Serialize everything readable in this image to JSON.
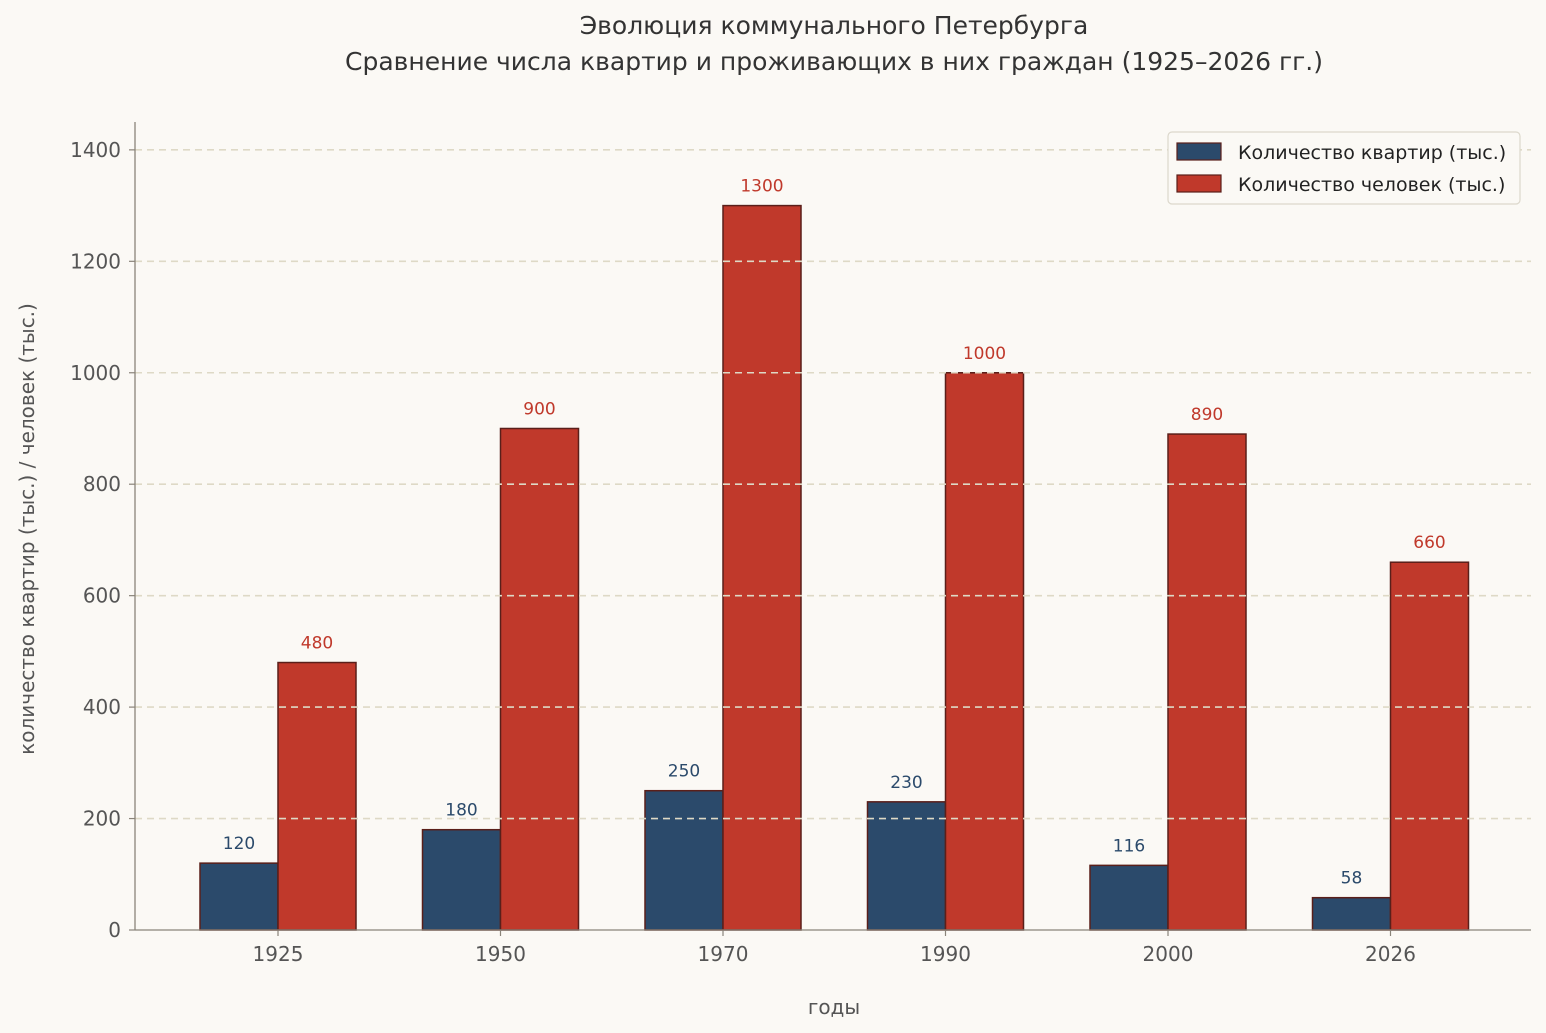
{
  "chart_data": {
    "type": "bar",
    "title": "Эволюция коммунального Петербурга",
    "subtitle": "Сравнение числа квартир и проживающих в них граждан (1925–2026 гг.)",
    "xlabel": "годы",
    "ylabel": "количество квартир (тыс.) / человек (тыс.)",
    "categories": [
      "1925",
      "1950",
      "1970",
      "1990",
      "2000",
      "2026"
    ],
    "series": [
      {
        "name": "Количество квартир (тыс.)",
        "values": [
          120,
          180,
          250,
          230,
          116,
          58
        ],
        "color": "#2b4a6b",
        "label_color": "#2b4a6b"
      },
      {
        "name": "Количество человек (тыс.)",
        "values": [
          480,
          900,
          1300,
          1000,
          890,
          660
        ],
        "color": "#c0392b",
        "label_color": "#c0392b"
      }
    ],
    "ylim": [
      0,
      1450
    ],
    "yticks": [
      0,
      200,
      400,
      600,
      800,
      1000,
      1200,
      1400
    ],
    "grid": true,
    "legend_position": "top-right",
    "bar_edge_color": "#5a1f1a",
    "grid_color": "#ded9c6",
    "axis_color": "#8a847a"
  }
}
